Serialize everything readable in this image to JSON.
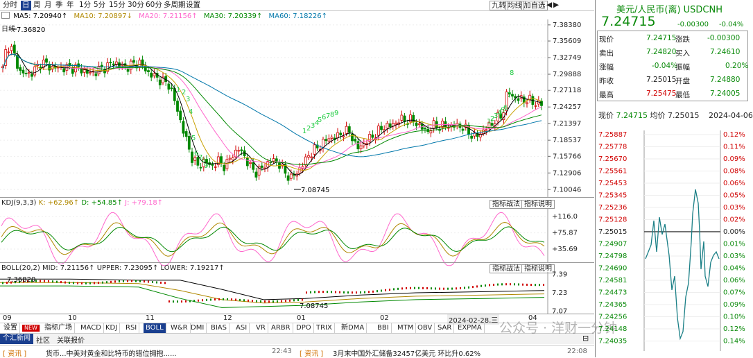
{
  "toolbar": {
    "periods": [
      "分时",
      "日",
      "周",
      "月",
      "季",
      "年",
      "1分",
      "5分",
      "15分",
      "30分",
      "60分",
      "多周期",
      "设置"
    ],
    "active_period": "日",
    "right_buttons": [
      "九转",
      "均线",
      "加自选"
    ]
  },
  "ma_legend": {
    "title": "日线",
    "ma5": "MA5: 7.20940↑",
    "ma10": "MA10: 7.20897↓",
    "ma20": "MA20: 7.21156↑",
    "ma30": "MA30: 7.20339↑",
    "ma60": "MA60: 7.18226↑",
    "colors": {
      "ma5": "#000000",
      "ma10": "#c8a000",
      "ma20": "#ff66cc",
      "ma30": "#008800",
      "ma60": "#0077aa"
    }
  },
  "main_axis": [
    "7.38380",
    "7.35609",
    "7.32749",
    "7.29888",
    "7.27118",
    "7.24257",
    "7.21397",
    "7.18537",
    "7.15766",
    "7.12906",
    "7.10046"
  ],
  "annotations": {
    "high": "7.36820",
    "low": "7.08745"
  },
  "td_labels": [
    "1",
    "2",
    "3",
    "4",
    "5",
    "6",
    "7",
    "8",
    "9",
    "1",
    "2",
    "3",
    "4",
    "5",
    "6",
    "7",
    "8",
    "9",
    "1",
    "2",
    "3",
    "4",
    "5",
    "6",
    "7",
    "8"
  ],
  "kdj": {
    "label": "KDJ(9,3,3)",
    "k": "K: +62.96↑",
    "d": "D: +54.85↑",
    "j": "J: +79.18↑",
    "axis": [
      "+116.0",
      "+75.87",
      "+35.69"
    ],
    "btn1": "指标战法",
    "btn2": "指标说明"
  },
  "boll": {
    "label": "BOLL(20,2)",
    "mid": "MID: 7.21156↑",
    "upper": "UPPER: 7.23095↑",
    "lower": "LOWER: 7.19217↑",
    "axis": [
      "7.39",
      "7.23",
      "7.07"
    ],
    "high": "7.36820",
    "low": "7.08745",
    "btn1": "指标战法",
    "btn2": "指标说明"
  },
  "x_axis": [
    "09",
    "10",
    "11",
    "12",
    "01",
    "02",
    "2024-02-28,三",
    "04"
  ],
  "indicator_tabs": [
    "设置",
    "NEW",
    "指标广场",
    "MACD",
    "KDJ",
    "RSI",
    "BOLL",
    "W&R",
    "DMI",
    "BIAS",
    "ASI",
    "VR",
    "ARBR",
    "DPO",
    "TRIX",
    "新DMA",
    "BBI",
    "MTM",
    "OBV",
    "SAR",
    "EXPMA"
  ],
  "active_indicator": "BOLL",
  "news_tabs": [
    "个汇新闻",
    "社区",
    "关联报价"
  ],
  "news_items": [
    {
      "tag": "[ 资讯 ]",
      "title": "货币...中美对黄金和比特币的错位拥抱......",
      "time": "22:43"
    },
    {
      "tag": "[ 资讯 ]",
      "title": "3月末中国外汇储备32457亿美元 环比升0.62%",
      "time": "22:08"
    }
  ],
  "quote": {
    "name": "美元/人民币(离) USDCNH",
    "price": "7.24715",
    "change": "-0.00300",
    "change_pct": "-0.04%",
    "rows": [
      {
        "l1": "现价",
        "v1": "7.24715",
        "l2": "涨跌",
        "v2": "-0.00300"
      },
      {
        "l1": "卖出",
        "v1": "7.24820",
        "l2": "买入",
        "v2": "7.24610"
      },
      {
        "l1": "涨幅",
        "v1": "-0.04%",
        "l2": "振幅",
        "v2": "0.20%"
      },
      {
        "l1": "昨收",
        "v1": "7.25015",
        "l2": "开盘",
        "v2": "7.24880"
      },
      {
        "l1": "最高",
        "v1": "7.25475",
        "l2": "最低",
        "v2": "7.24005"
      }
    ]
  },
  "intraday": {
    "now_label": "现价",
    "now": "7.24715",
    "avg_label": "均价",
    "avg": "7.25015",
    "date": "2024-04-06",
    "prices": [
      "7.25887",
      "7.25778",
      "7.25670",
      "7.25561",
      "7.25453",
      "7.25345",
      "7.25236",
      "7.25128",
      "7.25015",
      "7.24907",
      "7.24798",
      "7.24690",
      "7.24581",
      "7.24473",
      "7.24365",
      "7.24256",
      "7.24148",
      "7.24035"
    ],
    "pcts": [
      "0.12%",
      "0.11%",
      "0.09%",
      "0.08%",
      "0.06%",
      "0.05%",
      "0.03%",
      "0.02%",
      "0.00%",
      "0.01%",
      "0.03%",
      "0.04%",
      "0.06%",
      "0.07%",
      "0.09%",
      "0.10%",
      "0.12%",
      "0.14%"
    ]
  },
  "watermark": "公众号 · 洋财一分钟"
}
